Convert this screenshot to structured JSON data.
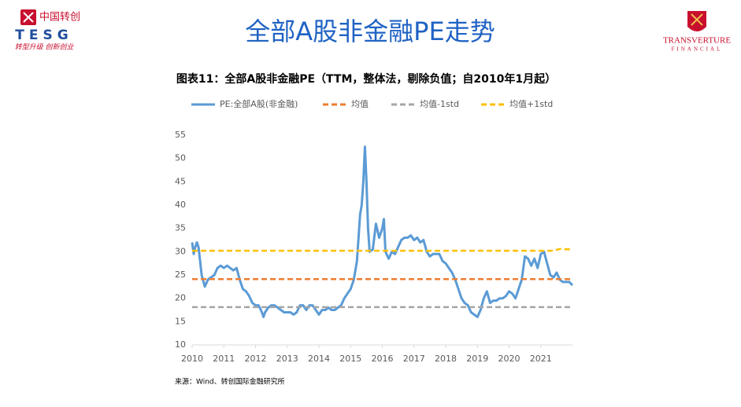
{
  "header": {
    "brand_cn": "中国转创",
    "brand_en": "TESG",
    "slogan": "转型升级 创新创业",
    "slide_title": "全部A股非金融PE走势",
    "partner": "TRANSVERTURE",
    "partner_sub": "FINANCIAL"
  },
  "chart_data": {
    "type": "line",
    "title": "图表11：全部A股非金融PE（TTM，整体法，剔除负值；自2010年1月起）",
    "source": "来源：Wind、转创国际金融研究所",
    "xlim": [
      2010,
      2022
    ],
    "xticks": [
      2010,
      2011,
      2012,
      2013,
      2014,
      2015,
      2016,
      2017,
      2018,
      2019,
      2020,
      2021
    ],
    "ylim": [
      10,
      55
    ],
    "yticks": [
      10,
      15,
      20,
      25,
      30,
      35,
      40,
      45,
      50,
      55
    ],
    "grid": false,
    "legend": "top",
    "series": [
      {
        "name": "PE:全部A股(非金融)",
        "color": "#5b9bd5",
        "dash": false,
        "x": [
          2010.0,
          2010.05,
          2010.1,
          2010.15,
          2010.2,
          2010.3,
          2010.4,
          2010.5,
          2010.6,
          2010.7,
          2010.8,
          2010.9,
          2011.0,
          2011.1,
          2011.2,
          2011.3,
          2011.4,
          2011.5,
          2011.6,
          2011.7,
          2011.8,
          2011.9,
          2012.0,
          2012.1,
          2012.2,
          2012.25,
          2012.3,
          2012.4,
          2012.5,
          2012.6,
          2012.7,
          2012.8,
          2012.9,
          2013.0,
          2013.1,
          2013.2,
          2013.3,
          2013.4,
          2013.5,
          2013.6,
          2013.7,
          2013.8,
          2013.9,
          2014.0,
          2014.1,
          2014.2,
          2014.3,
          2014.4,
          2014.5,
          2014.6,
          2014.7,
          2014.8,
          2014.9,
          2015.0,
          2015.1,
          2015.2,
          2015.3,
          2015.35,
          2015.4,
          2015.45,
          2015.5,
          2015.55,
          2015.6,
          2015.7,
          2015.8,
          2015.9,
          2016.0,
          2016.05,
          2016.1,
          2016.2,
          2016.3,
          2016.4,
          2016.5,
          2016.6,
          2016.7,
          2016.8,
          2016.9,
          2017.0,
          2017.1,
          2017.2,
          2017.3,
          2017.4,
          2017.5,
          2017.6,
          2017.7,
          2017.8,
          2017.9,
          2018.0,
          2018.1,
          2018.2,
          2018.3,
          2018.4,
          2018.5,
          2018.6,
          2018.7,
          2018.8,
          2018.9,
          2019.0,
          2019.1,
          2019.2,
          2019.3,
          2019.4,
          2019.5,
          2019.6,
          2019.7,
          2019.8,
          2019.9,
          2020.0,
          2020.1,
          2020.2,
          2020.3,
          2020.4,
          2020.5,
          2020.6,
          2020.7,
          2020.8,
          2020.9,
          2021.0,
          2021.1,
          2021.2,
          2021.3,
          2021.4,
          2021.5,
          2021.6,
          2021.7,
          2021.8,
          2021.9,
          2022.0
        ],
        "values": [
          32,
          29.5,
          31,
          32,
          31,
          25,
          22.5,
          24,
          24.5,
          25,
          26.5,
          27,
          26.5,
          27,
          26.5,
          26,
          26.5,
          24,
          22,
          21.5,
          20.5,
          19,
          18.5,
          18.5,
          17,
          16,
          17,
          18,
          18.5,
          18.5,
          18,
          17.5,
          17,
          17,
          17,
          16.5,
          17,
          18.5,
          18.5,
          17.5,
          18.5,
          18.5,
          17.5,
          16.5,
          17.5,
          17.5,
          18,
          17.5,
          17.5,
          18,
          18.5,
          20,
          21,
          22,
          24,
          28,
          38,
          40,
          45,
          52.5,
          45,
          35,
          30,
          30.5,
          36,
          33,
          35,
          37,
          30,
          28.5,
          30,
          29.5,
          31,
          32.5,
          33,
          33,
          33.5,
          32.5,
          33,
          32,
          32.5,
          30,
          29,
          29.5,
          29.5,
          29.5,
          28,
          27.5,
          26.5,
          25.5,
          24,
          22,
          20,
          19,
          18.5,
          17,
          16.5,
          16,
          17.5,
          20,
          21.5,
          19,
          19.5,
          19.5,
          20,
          20,
          20.5,
          21.5,
          21,
          20,
          22,
          24,
          29,
          28.5,
          27,
          28.5,
          26.5,
          29.5,
          30,
          27.5,
          25,
          24.5,
          25.5,
          24,
          23.5,
          23.5,
          23.5,
          22.8
        ]
      },
      {
        "name": "均值",
        "color": "#ed7d31",
        "dash": true,
        "x": [
          2010,
          2022
        ],
        "values": [
          24.1,
          24.1
        ]
      },
      {
        "name": "均值-1std",
        "color": "#a5a5a5",
        "dash": true,
        "x": [
          2010,
          2022
        ],
        "values": [
          18.1,
          18.1
        ]
      },
      {
        "name": "均值+1std",
        "color": "#ffc000",
        "dash": true,
        "x": [
          2010,
          2021.4,
          2021.6,
          2021.9,
          2022
        ],
        "values": [
          30.2,
          30.2,
          30.6,
          30.5,
          30.3
        ]
      }
    ]
  }
}
